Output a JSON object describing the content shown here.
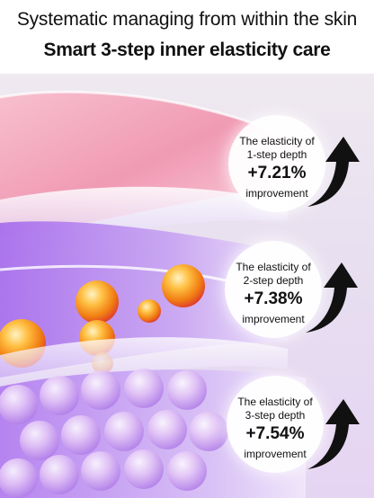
{
  "header": {
    "subtitle": "Systematic managing from within the skin",
    "title": "Smart 3-step inner elasticity care"
  },
  "steps": [
    {
      "line1": "The elasticity of",
      "line2": "1-step depth",
      "percent": "+7.21%",
      "line3": "improvement"
    },
    {
      "line1": "The elasticity of",
      "line2": "2-step depth",
      "percent": "+7.38%",
      "line3": "improvement"
    },
    {
      "line1": "The elasticity of",
      "line2": "3-step depth",
      "percent": "+7.54%",
      "line3": "improvement"
    }
  ],
  "icons": {
    "arrow": "curved-up-arrow-icon"
  },
  "colors": {
    "top_layer": "#f4a9bd",
    "mid_layer": "#b58be8",
    "bottom_layer": "#c8a6f2",
    "capsule": "#f5a21c"
  }
}
